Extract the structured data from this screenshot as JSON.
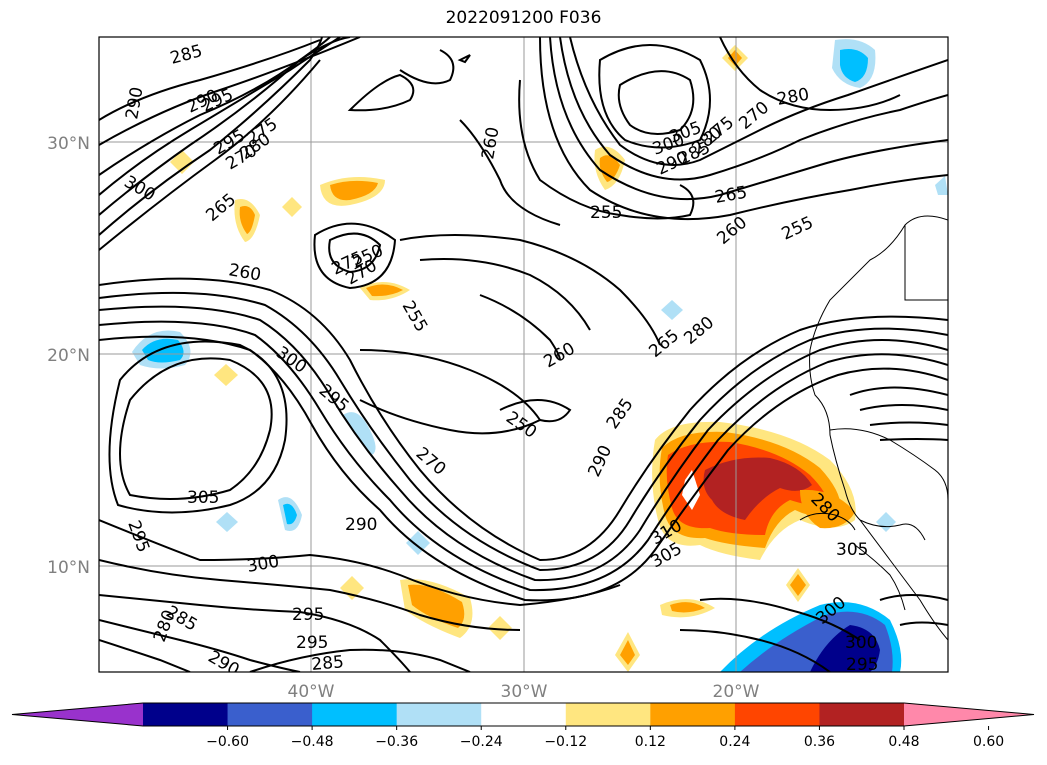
{
  "title": "2022091200 F036",
  "lat_labels": [
    "30°N",
    "20°N",
    "10°N"
  ],
  "lon_labels": [
    "40°W",
    "30°W",
    "20°W"
  ],
  "contour_labels": [
    "285",
    "290",
    "295",
    "290",
    "295",
    "270",
    "275",
    "280",
    "300",
    "265",
    "260",
    "275",
    "250",
    "270",
    "255",
    "300",
    "295",
    "270",
    "260",
    "255",
    "300",
    "305",
    "290",
    "285",
    "280",
    "275",
    "270",
    "265",
    "260",
    "255",
    "280",
    "260",
    "265",
    "280",
    "250",
    "285",
    "290",
    "310",
    "305",
    "295",
    "290",
    "285",
    "280",
    "300",
    "300",
    "285",
    "290",
    "295",
    "280",
    "305",
    "300",
    "295",
    "305",
    "295"
  ],
  "colorbar": {
    "ticks": [
      "−0.60",
      "−0.48",
      "−0.36",
      "−0.24",
      "−0.12",
      "0.12",
      "0.24",
      "0.36",
      "0.48",
      "0.60"
    ],
    "colors": [
      "#9932cc",
      "#00008b",
      "#3a5fcd",
      "#00bfff",
      "#b0e0f6",
      "#ffffff",
      "#ffe680",
      "#ffa000",
      "#ff4500",
      "#b22222",
      "#ff88aa"
    ]
  }
}
